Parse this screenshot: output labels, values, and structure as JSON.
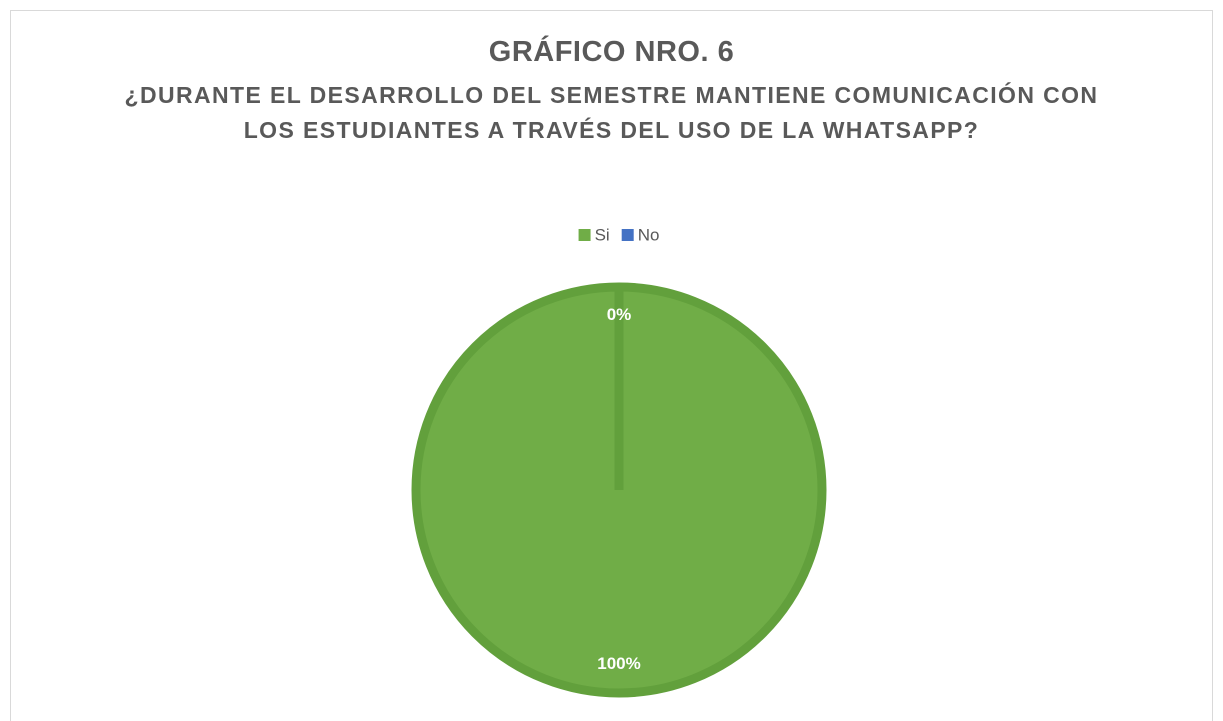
{
  "chart_data": {
    "type": "pie",
    "title": "GRÁFICO NRO. 6",
    "subtitle": "¿DURANTE EL DESARROLLO DEL SEMESTRE MANTIENE COMUNICACIÓN CON LOS ESTUDIANTES A TRAVÉS DEL USO DE LA WHATSAPP?",
    "categories": [
      "Si",
      "No"
    ],
    "values": [
      100,
      0
    ],
    "value_labels": [
      "100%",
      "0%"
    ],
    "colors": [
      "#70ad47",
      "#4472c4"
    ],
    "legend": "top"
  }
}
